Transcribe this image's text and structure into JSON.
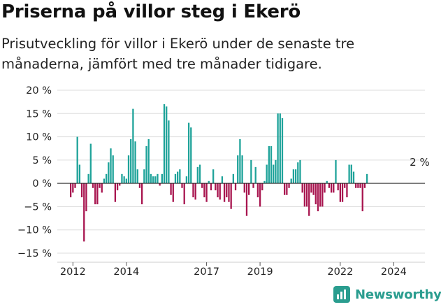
{
  "header": {
    "title": "Priserna på villor steg i Ekerö",
    "subtitle": "Prisutveckling för villor i Ekerö under de senaste tre månaderna, jämfört med tre månader tidigare."
  },
  "brand": {
    "name": "Newsworthy",
    "icon": "newsworthy-chart-icon"
  },
  "colors": {
    "positive": "#1fa39a",
    "negative": "#a8154f",
    "grid": "#dddddd",
    "axis": "#222222",
    "brand": "#2a9d8f"
  },
  "chart_data": {
    "type": "bar",
    "title": "",
    "xlabel": "",
    "ylabel": "",
    "ylim": [
      -15,
      20
    ],
    "yticks": [
      20,
      15,
      10,
      5,
      0,
      -5,
      -10,
      -15
    ],
    "ytick_labels": [
      "20 %",
      "15 %",
      "10 %",
      "5 %",
      "0 %",
      "−5 %",
      "−10 %",
      "−15 %"
    ],
    "xrange": [
      "2011-06",
      "2025-03"
    ],
    "xticks": [
      {
        "label": "2012",
        "date": "2012-01"
      },
      {
        "label": "2014",
        "date": "2014-01"
      },
      {
        "label": "2017",
        "date": "2017-01"
      },
      {
        "label": "2019",
        "date": "2019-01"
      },
      {
        "label": "2022",
        "date": "2022-01"
      },
      {
        "label": "2024",
        "date": "2024-01"
      }
    ],
    "grid": true,
    "legend": "none",
    "annotation": {
      "text": "2 %",
      "date": "2024-12"
    },
    "series": [
      {
        "start": "2011-12",
        "values": [
          -3,
          -2,
          -1,
          10,
          4,
          -3,
          -12.5,
          -6,
          2,
          8.5,
          -1,
          -4.5,
          -4.5,
          -1,
          -2,
          1,
          2,
          4.5,
          7.5,
          6,
          -4,
          -1.5,
          -0.5,
          2,
          1.5,
          1,
          6,
          9.5,
          16,
          9,
          3,
          -1,
          -4.5,
          3,
          8,
          9.5,
          2,
          1.5,
          1.5,
          2,
          -0.5,
          2,
          17,
          16.5,
          13.5,
          -2.5,
          -4,
          2,
          2.5,
          3,
          -1,
          -4.5,
          1.5,
          13,
          12,
          -3,
          -3.5,
          3.5,
          4,
          -1,
          -3,
          -4,
          0.5,
          -1.5,
          3,
          -1.5,
          -3,
          -3.5,
          1.5,
          -4,
          -3,
          -4,
          -5.5,
          2,
          -1.5,
          6,
          9.5,
          6,
          -2,
          -7,
          -2.5,
          5,
          -1,
          3.5,
          -3,
          -5,
          -1.5,
          0.5,
          4,
          8,
          8,
          4,
          5,
          15,
          15,
          14,
          -2.5,
          -2.5,
          -1,
          1,
          3,
          3,
          4.5,
          5,
          -2,
          -5,
          -5,
          -7,
          -2,
          -2.5,
          -4.5,
          -6,
          -5,
          -5,
          -2,
          0.5,
          -1,
          -2,
          -2,
          5,
          -1.5,
          -4,
          -4,
          -1,
          -3,
          4,
          4,
          2.5,
          -1,
          -1,
          -1,
          -6,
          -1,
          2
        ]
      }
    ]
  }
}
